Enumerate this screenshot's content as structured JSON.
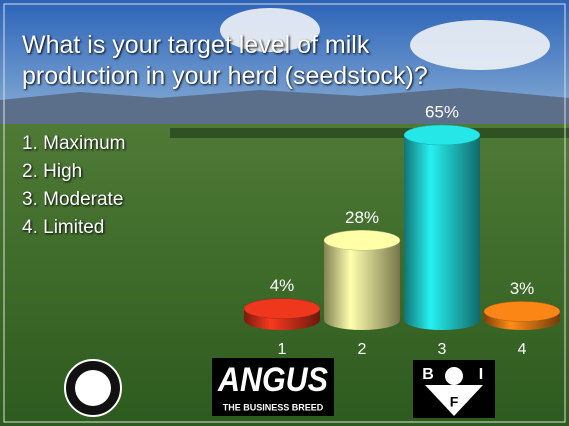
{
  "chart_data": {
    "type": "cylinder_bar",
    "title": "What is your target level of milk production in your herd (seedstock)?",
    "options": [
      "1. Maximum",
      "2. High",
      "3. Moderate",
      "4. Limited"
    ],
    "categories": [
      "1",
      "2",
      "3",
      "4"
    ],
    "values": [
      4,
      28,
      65,
      3
    ],
    "value_labels": [
      "4%",
      "28%",
      "65%",
      "3%"
    ],
    "colors": [
      "#d8321a",
      "#eeee98",
      "#22d2d2",
      "#e47a14"
    ]
  },
  "logos": {
    "angus": "ANGUS",
    "angus_tagline": "THE BUSINESS BREED",
    "bif_letters": [
      "B",
      "I",
      "F"
    ]
  }
}
